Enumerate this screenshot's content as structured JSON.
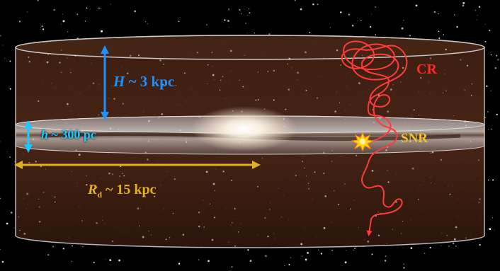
{
  "labels": {
    "H_symbol": "H",
    "H_value": " ~ 3 kpc",
    "h_symbol": "h",
    "h_value": " ~ 300 pc",
    "Rd_symbol": "R",
    "Rd_subscript": "d",
    "Rd_value": " ~ 15 kpc",
    "cr": "CR",
    "snr": "SNR"
  },
  "colors": {
    "halo_arrow": "#1e90ff",
    "disk_arrow": "#1ec8ff",
    "radius_arrow": "#e0b020",
    "cosmic_ray_path": "#ff3b3b",
    "snr_burst": "#ffd21e",
    "halo_fill": "#3a1c10",
    "space_background": "#000000"
  },
  "icons": {
    "snr": "starburst-icon"
  }
}
